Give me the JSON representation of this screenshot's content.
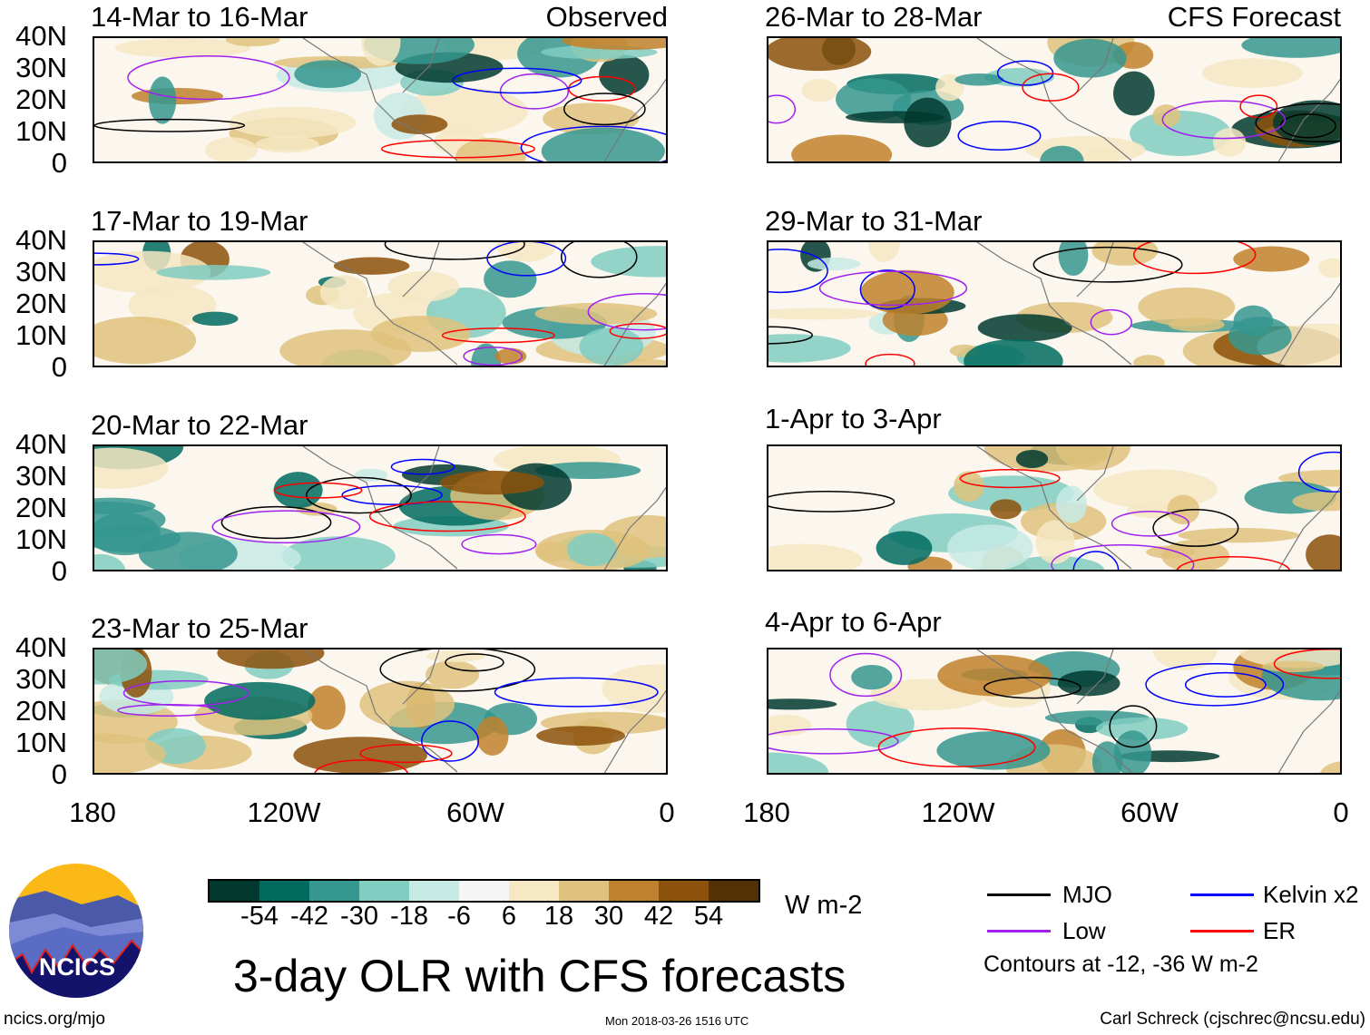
{
  "header": {
    "observed_label": "Observed",
    "forecast_label": "CFS Forecast"
  },
  "panels_left": [
    {
      "title": "14-Mar to 16-Mar"
    },
    {
      "title": "17-Mar to 19-Mar"
    },
    {
      "title": "20-Mar to 22-Mar"
    },
    {
      "title": "23-Mar to 25-Mar"
    }
  ],
  "panels_right": [
    {
      "title": "26-Mar to 28-Mar"
    },
    {
      "title": "29-Mar to 31-Mar"
    },
    {
      "title": "1-Apr to 3-Apr"
    },
    {
      "title": "4-Apr to 6-Apr"
    }
  ],
  "y_ticks": [
    "40N",
    "30N",
    "20N",
    "10N",
    "0"
  ],
  "x_ticks": [
    "180",
    "120W",
    "60W",
    "0"
  ],
  "colorbar": {
    "colors": [
      "#01392f",
      "#016b60",
      "#35978f",
      "#80cdc1",
      "#c7eae5",
      "#f5f5f5",
      "#f6e8c3",
      "#dfc27d",
      "#bf812d",
      "#8c510a",
      "#543005"
    ],
    "labels": [
      "-54",
      "-42",
      "-30",
      "-18",
      "-6",
      "6",
      "18",
      "30",
      "42",
      "54"
    ],
    "units": "W m-2"
  },
  "legend": {
    "items": [
      {
        "label": "MJO",
        "color": "#000000"
      },
      {
        "label": "Kelvin x2",
        "color": "#0000ff"
      },
      {
        "label": "Low",
        "color": "#a020f0"
      },
      {
        "label": "ER",
        "color": "#ff0000"
      }
    ],
    "note": "Contours at -12, -36 W m-2"
  },
  "logo": {
    "text": "NCICS"
  },
  "title": "3-day OLR with CFS forecasts",
  "footer": {
    "url": "ncics.org/mjo",
    "timestamp": "Mon 2018-03-26 1516 UTC",
    "author": "Carl Schreck (cjschrec@ncsu.edu)"
  }
}
